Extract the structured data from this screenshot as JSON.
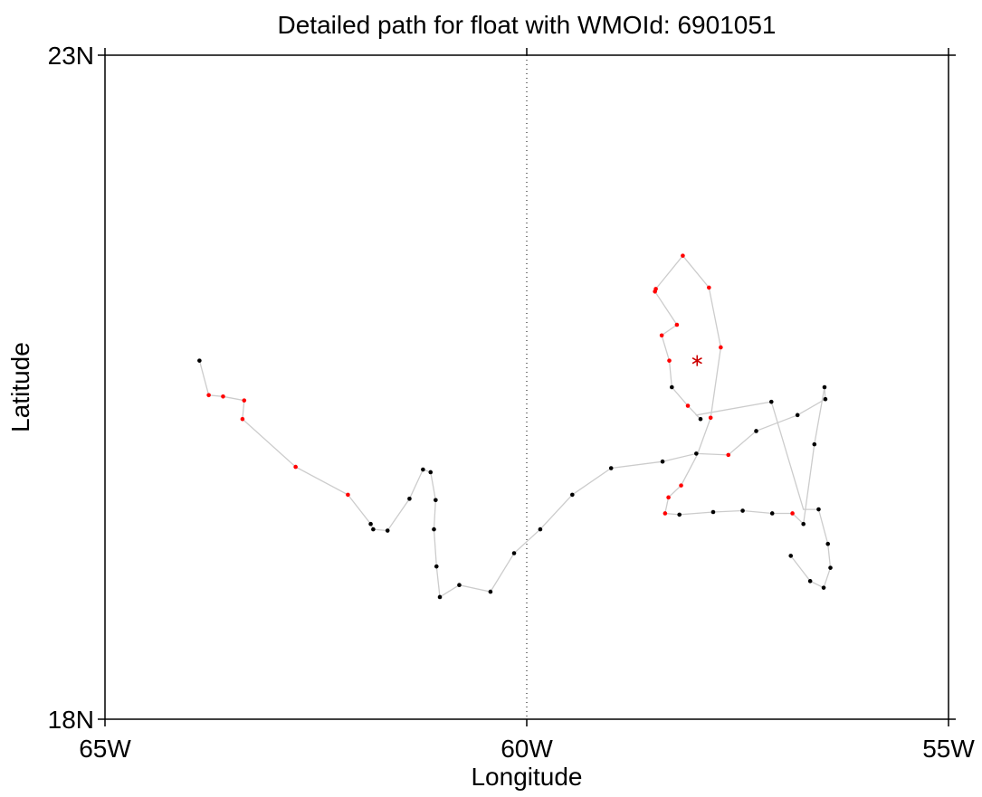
{
  "chart_data": {
    "type": "scatter",
    "title": "Detailed path for float with WMOId: 6901051",
    "xlabel": "Longitude",
    "ylabel": "Latitude",
    "xlim": [
      -65,
      -55
    ],
    "ylim": [
      18,
      23
    ],
    "x_ticks": [
      {
        "value": -65,
        "label": "65W"
      },
      {
        "value": -60,
        "label": "60W"
      },
      {
        "value": -55,
        "label": "55W"
      }
    ],
    "y_ticks": [
      {
        "value": 18,
        "label": "18N"
      },
      {
        "value": 23,
        "label": "23N"
      }
    ],
    "reference_line": {
      "x": -60,
      "style": "dotted"
    },
    "colors": {
      "path": "#cccccc",
      "point_black": "#000000",
      "point_red": "#ff0000",
      "marker_star": "#cc0000"
    },
    "track": [
      [
        -63.88,
        20.7
      ],
      [
        -63.77,
        20.44
      ],
      [
        -63.6,
        20.43
      ],
      [
        -63.35,
        20.4
      ],
      [
        -63.37,
        20.26
      ],
      [
        -62.74,
        19.9
      ],
      [
        -62.12,
        19.69
      ],
      [
        -61.85,
        19.47
      ],
      [
        -61.82,
        19.43
      ],
      [
        -61.65,
        19.42
      ],
      [
        -61.39,
        19.66
      ],
      [
        -61.23,
        19.88
      ],
      [
        -61.14,
        19.86
      ],
      [
        -61.08,
        19.65
      ],
      [
        -61.1,
        19.43
      ],
      [
        -61.07,
        19.15
      ],
      [
        -61.03,
        18.92
      ],
      [
        -60.8,
        19.01
      ],
      [
        -60.43,
        18.96
      ],
      [
        -60.15,
        19.25
      ],
      [
        -59.84,
        19.43
      ],
      [
        -59.46,
        19.69
      ],
      [
        -59.0,
        19.89
      ],
      [
        -58.39,
        19.94
      ],
      [
        -57.99,
        20.0
      ],
      [
        -57.61,
        19.99
      ],
      [
        -57.28,
        20.17
      ],
      [
        -56.79,
        20.29
      ],
      [
        -56.46,
        20.41
      ],
      [
        -56.47,
        20.5
      ],
      [
        -56.59,
        20.07
      ],
      [
        -56.72,
        19.47
      ],
      [
        -56.85,
        19.55
      ],
      [
        -57.09,
        19.55
      ],
      [
        -57.44,
        19.57
      ],
      [
        -57.79,
        19.56
      ],
      [
        -58.19,
        19.54
      ],
      [
        -58.36,
        19.55
      ],
      [
        -58.32,
        19.67
      ],
      [
        -58.17,
        19.76
      ],
      [
        -57.98,
        19.99
      ],
      [
        -57.82,
        20.27
      ],
      [
        -57.7,
        20.8
      ],
      [
        -57.84,
        21.25
      ],
      [
        -58.15,
        21.49
      ],
      [
        -58.47,
        21.24
      ],
      [
        -58.48,
        21.22
      ],
      [
        -58.22,
        20.97
      ],
      [
        -58.4,
        20.89
      ],
      [
        -58.31,
        20.7
      ],
      [
        -58.28,
        20.5
      ],
      [
        -58.09,
        20.36
      ],
      [
        -57.94,
        20.26
      ],
      [
        -57.99,
        20.29
      ],
      [
        -57.1,
        20.39
      ],
      [
        -56.72,
        19.58
      ],
      [
        -56.54,
        19.58
      ],
      [
        -56.43,
        19.32
      ],
      [
        -56.4,
        19.14
      ],
      [
        -56.48,
        18.99
      ],
      [
        -56.64,
        19.04
      ],
      [
        -56.87,
        19.23
      ]
    ],
    "points": [
      {
        "x": -63.88,
        "y": 20.7,
        "color": "black"
      },
      {
        "x": -63.77,
        "y": 20.44,
        "color": "red"
      },
      {
        "x": -63.6,
        "y": 20.43,
        "color": "red"
      },
      {
        "x": -63.35,
        "y": 20.4,
        "color": "red"
      },
      {
        "x": -63.37,
        "y": 20.26,
        "color": "red"
      },
      {
        "x": -62.74,
        "y": 19.9,
        "color": "red"
      },
      {
        "x": -62.12,
        "y": 19.69,
        "color": "red"
      },
      {
        "x": -61.85,
        "y": 19.47,
        "color": "black"
      },
      {
        "x": -61.82,
        "y": 19.43,
        "color": "black"
      },
      {
        "x": -61.65,
        "y": 19.42,
        "color": "black"
      },
      {
        "x": -61.39,
        "y": 19.66,
        "color": "black"
      },
      {
        "x": -61.23,
        "y": 19.88,
        "color": "black"
      },
      {
        "x": -61.14,
        "y": 19.86,
        "color": "black"
      },
      {
        "x": -61.08,
        "y": 19.65,
        "color": "black"
      },
      {
        "x": -61.1,
        "y": 19.43,
        "color": "black"
      },
      {
        "x": -61.07,
        "y": 19.15,
        "color": "black"
      },
      {
        "x": -61.03,
        "y": 18.92,
        "color": "black"
      },
      {
        "x": -60.8,
        "y": 19.01,
        "color": "black"
      },
      {
        "x": -60.43,
        "y": 18.96,
        "color": "black"
      },
      {
        "x": -60.15,
        "y": 19.25,
        "color": "black"
      },
      {
        "x": -59.84,
        "y": 19.43,
        "color": "black"
      },
      {
        "x": -59.46,
        "y": 19.69,
        "color": "black"
      },
      {
        "x": -59.0,
        "y": 19.89,
        "color": "black"
      },
      {
        "x": -58.39,
        "y": 19.94,
        "color": "black"
      },
      {
        "x": -57.99,
        "y": 20.0,
        "color": "black"
      },
      {
        "x": -57.61,
        "y": 19.99,
        "color": "red"
      },
      {
        "x": -57.28,
        "y": 20.17,
        "color": "black"
      },
      {
        "x": -56.79,
        "y": 20.29,
        "color": "black"
      },
      {
        "x": -56.46,
        "y": 20.41,
        "color": "black"
      },
      {
        "x": -56.47,
        "y": 20.5,
        "color": "black"
      },
      {
        "x": -56.59,
        "y": 20.07,
        "color": "black"
      },
      {
        "x": -56.72,
        "y": 19.47,
        "color": "black"
      },
      {
        "x": -56.85,
        "y": 19.55,
        "color": "red"
      },
      {
        "x": -57.09,
        "y": 19.55,
        "color": "black"
      },
      {
        "x": -57.44,
        "y": 19.57,
        "color": "black"
      },
      {
        "x": -57.79,
        "y": 19.56,
        "color": "black"
      },
      {
        "x": -58.19,
        "y": 19.54,
        "color": "black"
      },
      {
        "x": -58.36,
        "y": 19.55,
        "color": "red"
      },
      {
        "x": -58.32,
        "y": 19.67,
        "color": "red"
      },
      {
        "x": -58.17,
        "y": 19.76,
        "color": "red"
      },
      {
        "x": -57.82,
        "y": 20.27,
        "color": "red"
      },
      {
        "x": -57.7,
        "y": 20.8,
        "color": "red"
      },
      {
        "x": -57.84,
        "y": 21.25,
        "color": "red"
      },
      {
        "x": -58.15,
        "y": 21.49,
        "color": "red"
      },
      {
        "x": -58.47,
        "y": 21.24,
        "color": "red"
      },
      {
        "x": -58.48,
        "y": 21.22,
        "color": "red"
      },
      {
        "x": -58.22,
        "y": 20.97,
        "color": "red"
      },
      {
        "x": -58.4,
        "y": 20.89,
        "color": "red"
      },
      {
        "x": -58.31,
        "y": 20.7,
        "color": "red"
      },
      {
        "x": -58.28,
        "y": 20.5,
        "color": "black"
      },
      {
        "x": -58.09,
        "y": 20.36,
        "color": "red"
      },
      {
        "x": -57.94,
        "y": 20.26,
        "color": "black"
      },
      {
        "x": -57.1,
        "y": 20.39,
        "color": "black"
      },
      {
        "x": -56.54,
        "y": 19.58,
        "color": "black"
      },
      {
        "x": -56.43,
        "y": 19.32,
        "color": "black"
      },
      {
        "x": -56.4,
        "y": 19.14,
        "color": "black"
      },
      {
        "x": -56.48,
        "y": 18.99,
        "color": "black"
      },
      {
        "x": -56.64,
        "y": 19.04,
        "color": "black"
      },
      {
        "x": -56.87,
        "y": 19.23,
        "color": "black"
      }
    ],
    "marker": {
      "x": -57.98,
      "y": 20.7,
      "symbol": "asterisk"
    }
  }
}
